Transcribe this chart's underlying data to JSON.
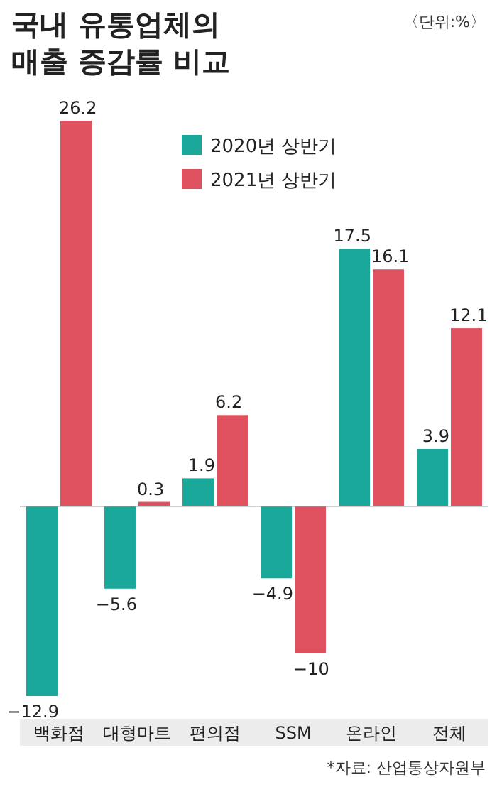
{
  "chart_data": {
    "type": "bar",
    "title": "국내 유통업체의 매출 증감률 비교",
    "subtitle": "〈단위:%〉",
    "categories": [
      "백화점",
      "대형마트",
      "편의점",
      "SSM",
      "온라인",
      "전체"
    ],
    "series": [
      {
        "name": "2020년 상반기",
        "color": "#1aa89a",
        "values": [
          -12.9,
          -5.6,
          1.9,
          -4.9,
          17.5,
          3.9
        ]
      },
      {
        "name": "2021년 상반기",
        "color": "#e0515f",
        "values": [
          26.2,
          0.3,
          6.2,
          -10,
          16.1,
          12.1
        ]
      }
    ],
    "data_labels": true,
    "legend": "top right",
    "annotations": [
      "*자료: 산업통상자원부"
    ]
  }
}
